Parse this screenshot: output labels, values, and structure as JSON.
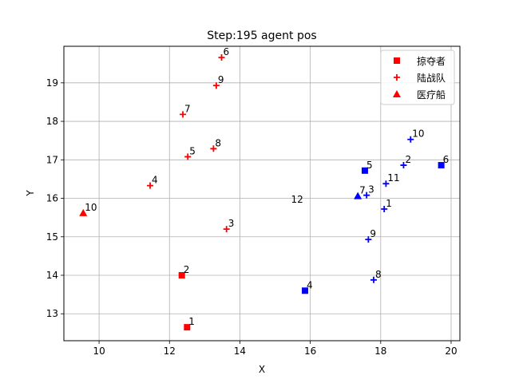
{
  "chart_data": {
    "type": "scatter",
    "title": "Step:195  agent pos",
    "xlabel": "X",
    "ylabel": "Y",
    "xlim": [
      9.0,
      20.25
    ],
    "ylim": [
      12.3,
      19.95
    ],
    "xticks": [
      10,
      12,
      14,
      16,
      18,
      20
    ],
    "yticks": [
      13,
      14,
      15,
      16,
      17,
      18,
      19
    ],
    "grid": true,
    "legend": {
      "position": "upper right",
      "entries": [
        "掠夺者",
        "陆战队",
        "医疗船"
      ]
    },
    "teams": {
      "red": "#ff0000",
      "blue": "#0000ff"
    },
    "series": [
      {
        "name": "掠夺者",
        "marker": "square",
        "points": [
          {
            "team": "red",
            "label": "1",
            "x": 12.5,
            "y": 12.65
          },
          {
            "team": "red",
            "label": "2",
            "x": 12.35,
            "y": 14.0
          },
          {
            "team": "blue",
            "label": "4",
            "x": 15.85,
            "y": 13.6
          },
          {
            "team": "blue",
            "label": "5",
            "x": 17.55,
            "y": 16.72
          },
          {
            "team": "blue",
            "label": "6",
            "x": 19.72,
            "y": 16.86
          }
        ]
      },
      {
        "name": "陆战队",
        "marker": "plus",
        "points": [
          {
            "team": "red",
            "label": "3",
            "x": 13.62,
            "y": 15.2
          },
          {
            "team": "red",
            "label": "4",
            "x": 11.45,
            "y": 16.33
          },
          {
            "team": "red",
            "label": "5",
            "x": 12.52,
            "y": 17.08
          },
          {
            "team": "red",
            "label": "6",
            "x": 13.48,
            "y": 19.66
          },
          {
            "team": "red",
            "label": "7",
            "x": 12.38,
            "y": 18.18
          },
          {
            "team": "red",
            "label": "8",
            "x": 13.25,
            "y": 17.29
          },
          {
            "team": "red",
            "label": "9",
            "x": 13.33,
            "y": 18.93
          },
          {
            "team": "blue",
            "label": "1",
            "x": 18.1,
            "y": 15.72
          },
          {
            "team": "blue",
            "label": "2",
            "x": 18.65,
            "y": 16.86
          },
          {
            "team": "blue",
            "label": "3",
            "x": 17.6,
            "y": 16.08
          },
          {
            "team": "blue",
            "label": "8",
            "x": 17.8,
            "y": 13.88
          },
          {
            "team": "blue",
            "label": "9",
            "x": 17.65,
            "y": 14.93
          },
          {
            "team": "blue",
            "label": "10",
            "x": 18.85,
            "y": 17.53
          },
          {
            "team": "blue",
            "label": "11",
            "x": 18.15,
            "y": 16.38
          }
        ]
      },
      {
        "name": "医疗船",
        "marker": "triangle",
        "points": [
          {
            "team": "red",
            "label": "10",
            "x": 9.55,
            "y": 15.62
          },
          {
            "team": "blue",
            "label": "7",
            "x": 17.35,
            "y": 16.06
          }
        ]
      }
    ],
    "annotations": [
      {
        "text": "12",
        "x": 15.8,
        "y": 15.97
      }
    ]
  }
}
